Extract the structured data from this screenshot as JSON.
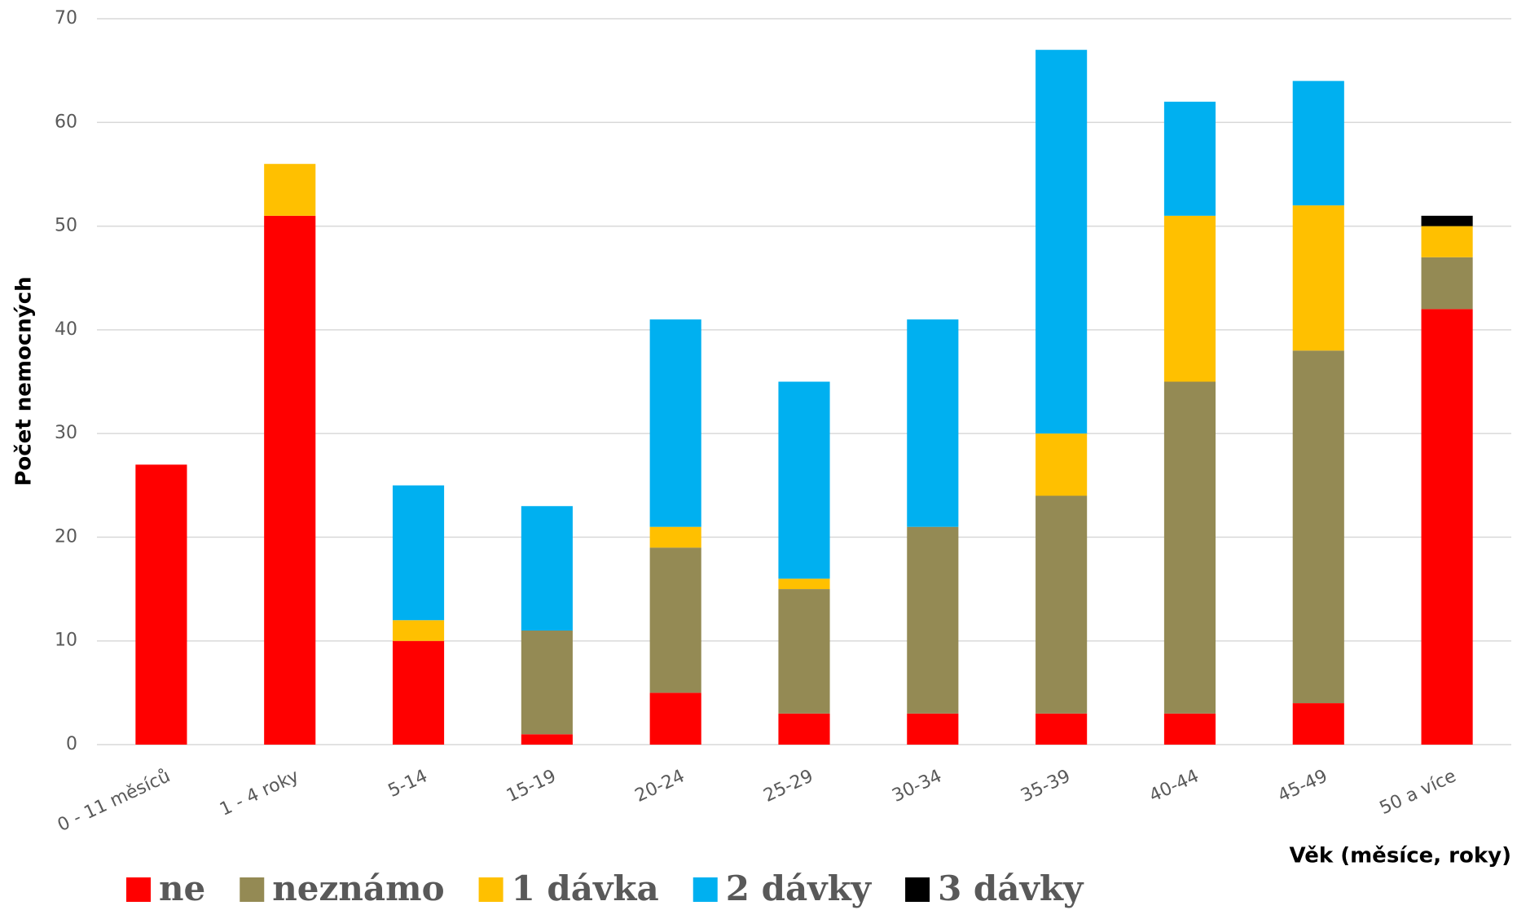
{
  "chart_data": {
    "type": "stacked-bar",
    "ylabel": "Počet nemocných",
    "xlabel": "Věk (měsíce, roky)",
    "categories": [
      "0 - 11 měsíců",
      "1 - 4 roky",
      "5-14",
      "15-19",
      "20-24",
      "25-29",
      "30-34",
      "35-39",
      "40-44",
      "45-49",
      "50 a více"
    ],
    "series": [
      {
        "name": "ne",
        "color": "#ff0000",
        "values": [
          27,
          51,
          10,
          1,
          5,
          3,
          3,
          3,
          3,
          4,
          42
        ]
      },
      {
        "name": "neznámo",
        "color": "#948a54",
        "values": [
          0,
          0,
          0,
          10,
          14,
          12,
          18,
          21,
          32,
          34,
          5
        ]
      },
      {
        "name": "1 dávka",
        "color": "#ffc000",
        "values": [
          0,
          5,
          2,
          0,
          2,
          1,
          0,
          6,
          16,
          14,
          3
        ]
      },
      {
        "name": "2 dávky",
        "color": "#00b0f0",
        "values": [
          0,
          0,
          13,
          12,
          20,
          19,
          20,
          37,
          11,
          12,
          0
        ]
      },
      {
        "name": "3 dávky",
        "color": "#000000",
        "values": [
          0,
          0,
          0,
          0,
          0,
          0,
          0,
          0,
          0,
          0,
          1
        ]
      }
    ],
    "ylim": [
      0,
      70
    ],
    "yticks": [
      0,
      10,
      20,
      30,
      40,
      50,
      60,
      70
    ],
    "grid": true,
    "legend": "bottom"
  }
}
